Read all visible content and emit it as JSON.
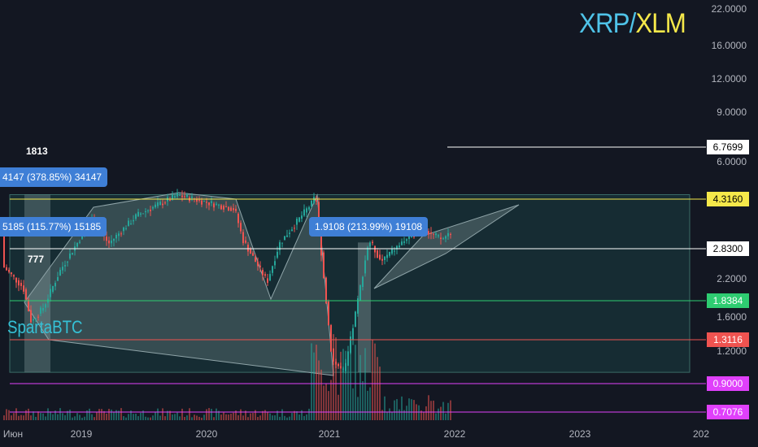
{
  "title": {
    "base": "XRP",
    "slash": "/",
    "quote": "XLM"
  },
  "watermark": "SpartaBTC",
  "notes": {
    "top": "1813",
    "mid": "777"
  },
  "bubbles": {
    "b1": "4147 (378.85%) 34147",
    "b2": "5185 (115.77%) 15185",
    "b3": "1.9108 (213.99%) 19108"
  },
  "colors": {
    "white": "#ffffff",
    "yellow": "#f5e84a",
    "green": "#2ecc71",
    "red": "#ef5350",
    "magenta": "#e040fb",
    "up": "#26a69a",
    "down": "#ef5350"
  },
  "chart_data": {
    "type": "candlestick",
    "y_scale": "log",
    "y_ticks": [
      "22.0000",
      "16.0000",
      "12.0000",
      "9.0000",
      "6.0000",
      "2.8300",
      "2.2000",
      "1.6000",
      "1.2000"
    ],
    "x_ticks": [
      "Июн",
      "2019",
      "2020",
      "2021",
      "2022",
      "2023",
      "202"
    ],
    "levels": [
      {
        "value": "6.7699",
        "color": "white"
      },
      {
        "value": "4.3160",
        "color": "yellow"
      },
      {
        "value": "2.8300",
        "color": "white"
      },
      {
        "value": "1.8384",
        "color": "green"
      },
      {
        "value": "1.3116",
        "color": "red"
      },
      {
        "value": "0.9000",
        "color": "magenta"
      },
      {
        "value": "0.7076",
        "color": "magenta"
      }
    ],
    "annotations": [
      "1813",
      "777",
      "4147 (378.85%) 34147",
      "5185 (115.77%) 15185",
      "1.9108 (213.99%) 19108"
    ]
  }
}
